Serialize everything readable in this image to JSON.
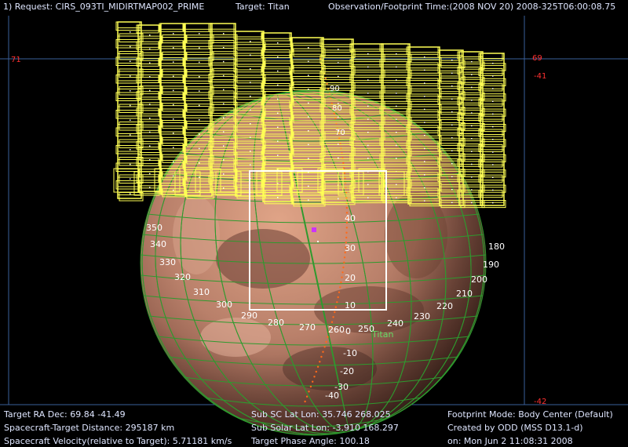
{
  "header": {
    "request": "1) Request: CIRS_093TI_MIDIRTMAP002_PRIME",
    "target": "Target: Titan",
    "obs_time": "Observation/Footprint Time:(2008 NOV 20) 2008-325T06:00:08.75"
  },
  "corners": {
    "top_left": "71",
    "top_right_a": "69",
    "top_right_b": "-41",
    "bottom_right": "-42"
  },
  "globe": {
    "target_label": "Titan",
    "colors": {
      "grid": "#2e9a2e",
      "footprint": "#ffff55",
      "frame": "#ffffff",
      "track": "#ff6a1a",
      "marker": "#cc33ff"
    },
    "longitude_labels": [
      "350",
      "340",
      "330",
      "320",
      "310",
      "300",
      "290",
      "280",
      "270",
      "260",
      "250",
      "240",
      "230",
      "220",
      "210",
      "200",
      "190",
      "180"
    ],
    "latitude_labels": [
      "40",
      "30",
      "20",
      "10",
      "0",
      "-10",
      "-20",
      "-30",
      "-40"
    ],
    "upper_latitude_labels": [
      "90",
      "80",
      "70"
    ]
  },
  "footer": {
    "left": [
      "Target RA Dec: 69.84  -41.49",
      "Spacecraft-Target Distance:  295187 km",
      "Spacecraft Velocity(relative to Target): 5.71181 km/s"
    ],
    "middle": [
      "Sub SC Lat Lon: 35.746  268.025",
      "Sub Solar Lat Lon: -3.910  168.297",
      "Target Phase Angle: 100.18"
    ],
    "right": [
      "Footprint Mode: Body Center (Default)",
      "Created by ODD (MSS D13.1-d)",
      "on: Mon Jun  2 11:08:31 2008"
    ]
  }
}
